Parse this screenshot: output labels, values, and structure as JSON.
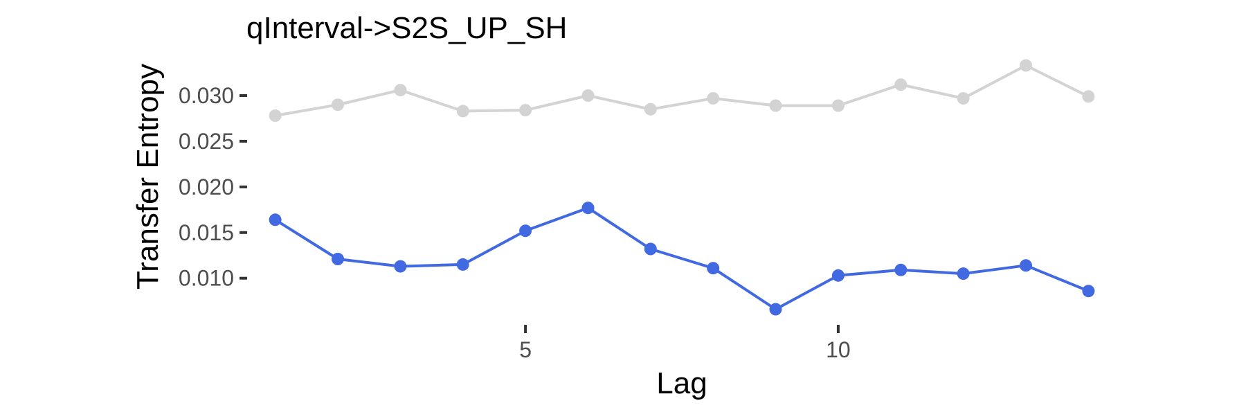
{
  "chart_data": {
    "type": "line",
    "title": "qInterval->S2S_UP_SH",
    "xlabel": "Lag",
    "ylabel": "Transfer Entropy",
    "x": [
      1,
      2,
      3,
      4,
      5,
      6,
      7,
      8,
      9,
      10,
      11,
      12,
      13,
      14
    ],
    "x_ticks": [
      {
        "value": 5,
        "label": "5"
      },
      {
        "value": 10,
        "label": "10"
      }
    ],
    "y_ticks": [
      {
        "value": 0.01,
        "label": "0.010"
      },
      {
        "value": 0.015,
        "label": "0.015"
      },
      {
        "value": 0.02,
        "label": "0.020"
      },
      {
        "value": 0.025,
        "label": "0.025"
      },
      {
        "value": 0.03,
        "label": "0.030"
      }
    ],
    "xlim": [
      0.65,
      14.35
    ],
    "ylim": [
      0.0052,
      0.0344
    ],
    "grid": false,
    "legend": "none",
    "series": [
      {
        "color": "#d3d3d3",
        "values": [
          0.0278,
          0.029,
          0.0306,
          0.0283,
          0.0284,
          0.03,
          0.0285,
          0.0297,
          0.0289,
          0.0289,
          0.0312,
          0.0297,
          0.0333,
          0.0299
        ]
      },
      {
        "color": "#4169e1",
        "values": [
          0.0164,
          0.0121,
          0.0113,
          0.0115,
          0.0152,
          0.0177,
          0.0132,
          0.0111,
          0.0066,
          0.0103,
          0.0109,
          0.0105,
          0.0114,
          0.0086
        ]
      }
    ]
  }
}
